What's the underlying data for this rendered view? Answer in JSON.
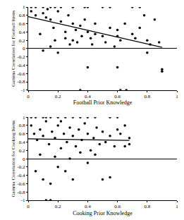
{
  "chart_data": [
    {
      "type": "scatter",
      "x_label": "Football Prior Knowledge",
      "y_label": "Gamma Correlation for Football Items",
      "x": [
        0.02,
        0.05,
        0.1,
        0.15,
        0.18,
        0.22,
        0.3,
        0.38,
        0.4,
        0.5,
        0.55,
        0.7,
        0.75,
        0.02,
        0.05,
        0.1,
        0.12,
        0.13,
        0.15,
        0.17,
        0.2,
        0.22,
        0.25,
        0.27,
        0.3,
        0.3,
        0.32,
        0.35,
        0.36,
        0.38,
        0.4,
        0.42,
        0.43,
        0.45,
        0.45,
        0.5,
        0.52,
        0.55,
        0.58,
        0.6,
        0.62,
        0.65,
        0.7,
        0.72,
        0.75,
        0.8,
        0.82,
        0.85,
        0.88,
        0.9,
        0.9,
        0.4,
        0.6,
        0.35,
        0.62,
        0.66,
        0.1,
        0.15,
        0.2,
        0.25,
        0.08,
        0.18,
        0.28,
        0.33,
        0.6,
        0.78,
        0.8
      ],
      "y": [
        1,
        1,
        1,
        1,
        1,
        1,
        1,
        1,
        1,
        1,
        1,
        1,
        1,
        0.9,
        0.8,
        0.85,
        0.75,
        0.95,
        0.7,
        0.5,
        0.9,
        0.65,
        0.4,
        0.8,
        0.6,
        0.2,
        0.45,
        0.55,
        0.3,
        0.7,
        0.4,
        0.25,
        0.1,
        0.6,
        0.35,
        0.3,
        0.15,
        0.5,
        0.05,
        0.45,
        0.2,
        0.6,
        0.35,
        0.25,
        0.5,
        0.2,
        0.1,
        0.7,
        0.15,
        -0.5,
        -0.55,
        -0.45,
        -0.45,
        -1,
        -1,
        -1,
        -0.05,
        0.05,
        -0.1,
        0.25,
        0.35,
        0.2,
        0.1,
        0.15,
        0.3,
        0.8,
        -0.1
      ],
      "trend": {
        "x": [
          0,
          0.9
        ],
        "y": [
          0.77,
          0.03
        ]
      },
      "color": "#000000",
      "xlim": [
        0,
        1
      ],
      "xticks": [
        0,
        0.2,
        0.4,
        0.6,
        0.8,
        1
      ],
      "ylim": [
        -1,
        1
      ],
      "yticks": [
        -1,
        -0.8,
        -0.6,
        -0.4,
        -0.2,
        0,
        0.2,
        0.4,
        0.6,
        0.8,
        1
      ],
      "grid": false
    },
    {
      "type": "scatter",
      "x_label": "Cooking Prior Knowledge",
      "y_label": "Gamma Correlation for Cooking Items",
      "x": [
        0.02,
        0.05,
        0.1,
        0.12,
        0.15,
        0.2,
        0.25,
        0.3,
        0.35,
        0.4,
        0.45,
        0.55,
        0.6,
        0.02,
        0.04,
        0.06,
        0.08,
        0.1,
        0.12,
        0.14,
        0.16,
        0.18,
        0.2,
        0.22,
        0.24,
        0.26,
        0.28,
        0.3,
        0.32,
        0.34,
        0.36,
        0.38,
        0.4,
        0.42,
        0.44,
        0.46,
        0.48,
        0.5,
        0.52,
        0.55,
        0.58,
        0.6,
        0.62,
        0.65,
        0.68,
        0.12,
        0.15,
        0.1,
        0.05,
        0.2,
        0.3,
        0.25,
        0.4,
        0.5,
        0.55,
        0.15,
        0.08,
        0.18,
        0.35,
        0.45,
        0.28,
        0.22,
        0.65,
        0.68
      ],
      "y": [
        1,
        1,
        1,
        1,
        1,
        1,
        1,
        1,
        1,
        1,
        1,
        1,
        1,
        0.8,
        0.6,
        0.45,
        0.7,
        0.55,
        0.9,
        0.35,
        0.65,
        0.5,
        0.8,
        0.25,
        0.6,
        0.4,
        0.75,
        0.55,
        0.3,
        0.7,
        0.45,
        0.85,
        0.6,
        0.2,
        0.5,
        0.75,
        0.35,
        0.65,
        0.4,
        0.55,
        0.3,
        0.7,
        0.6,
        0.8,
        0.5,
        -1,
        -1,
        -0.5,
        -0.3,
        -0.2,
        -0.5,
        -0.3,
        -0.1,
        -0.5,
        -0.45,
        -0.6,
        0.1,
        0.05,
        0.15,
        0.1,
        0.0,
        0.9,
        0.3,
        0.35
      ],
      "trend": {
        "x": [
          0,
          0.68
        ],
        "y": [
          0.48,
          0.44
        ]
      },
      "color": "#000000",
      "xlim": [
        0,
        1
      ],
      "xticks": [
        0,
        0.2,
        0.4,
        0.6,
        0.8,
        1
      ],
      "ylim": [
        -1,
        1
      ],
      "yticks": [
        -1,
        -0.8,
        -0.6,
        -0.4,
        -0.2,
        0,
        0.2,
        0.4,
        0.6,
        0.8,
        1
      ],
      "grid": false
    }
  ]
}
